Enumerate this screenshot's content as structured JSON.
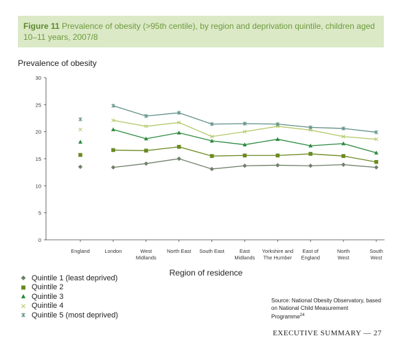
{
  "header": {
    "figure_number": "Figure 11",
    "title": "Prevalence of obesity (>95th centile), by region and deprivation quintile, children aged 10–11 years, 2007/8"
  },
  "chart_data": {
    "type": "line",
    "ylabel": "Prevalence of obesity",
    "xlabel": "Region of residence",
    "ylim": [
      0,
      30
    ],
    "yticks": [
      "0",
      "5",
      "10",
      "15",
      "20",
      "25",
      "30"
    ],
    "categories": [
      "England",
      "London",
      "West Midlands",
      "North East",
      "South East",
      "East Midlands",
      "Yorkshire and The Humber",
      "East of England",
      "North West",
      "South West"
    ],
    "category_labels": [
      [
        "England"
      ],
      [
        "London"
      ],
      [
        "West",
        "Midlands"
      ],
      [
        "North East"
      ],
      [
        "South East"
      ],
      [
        "East",
        "Midlands"
      ],
      [
        "Yorkshire and",
        "The Humber"
      ],
      [
        "East of",
        "England"
      ],
      [
        "North",
        "West"
      ],
      [
        "South",
        "West"
      ]
    ],
    "legend_position": "bottom-left",
    "grid": false,
    "series": [
      {
        "name": "Quintile 1 (least deprived)",
        "marker": "diamond",
        "color": "#6f7f6a",
        "values": [
          13.5,
          13.4,
          14.1,
          15.0,
          13.1,
          13.7,
          13.8,
          13.7,
          13.9,
          13.4
        ]
      },
      {
        "name": "Quintile 2",
        "marker": "square",
        "color": "#6a8a22",
        "values": [
          15.7,
          16.6,
          16.5,
          17.2,
          15.5,
          15.6,
          15.6,
          15.9,
          15.5,
          14.4
        ]
      },
      {
        "name": "Quintile 3",
        "marker": "triangle",
        "color": "#2b8a3e",
        "values": [
          18.1,
          20.4,
          18.7,
          19.8,
          18.3,
          17.6,
          18.6,
          17.4,
          17.8,
          16.1
        ]
      },
      {
        "name": "Quintile 4",
        "marker": "x",
        "color": "#b3c96a",
        "values": [
          20.4,
          22.1,
          21.0,
          21.7,
          19.1,
          20.0,
          21.0,
          20.3,
          19.1,
          18.6
        ]
      },
      {
        "name": "Quintile 5 (most deprived)",
        "marker": "asterisk",
        "color": "#5f8f86",
        "values": [
          22.3,
          24.8,
          22.9,
          23.5,
          21.4,
          21.5,
          21.4,
          20.8,
          20.6,
          19.9
        ]
      }
    ]
  },
  "source": {
    "text": "Source: National Obesity Observatory, based on National Child Measurement Programme",
    "ref": "24"
  },
  "footer": {
    "text": "EXECUTIVE SUMMARY — 27"
  }
}
